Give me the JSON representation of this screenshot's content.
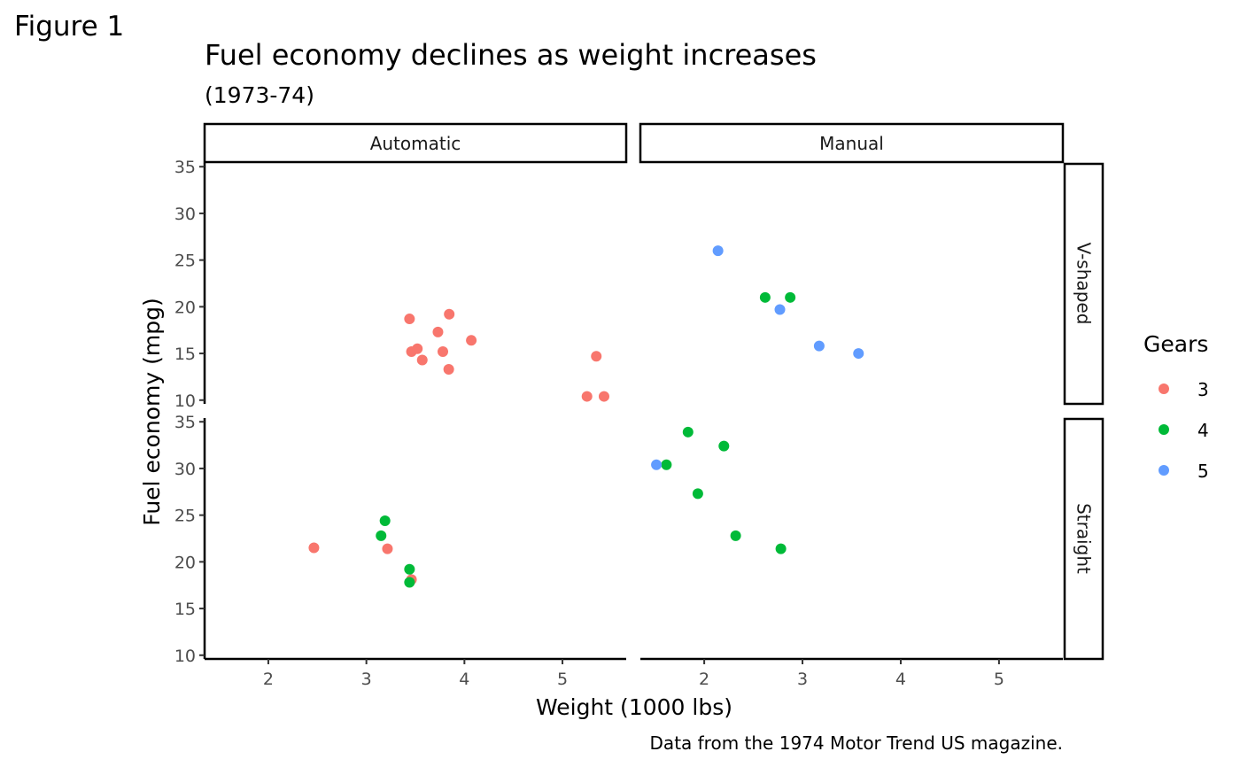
{
  "figure_label": "Figure 1",
  "chart_data": {
    "type": "scatter",
    "title": "Fuel economy declines as weight increases",
    "subtitle": "(1973-74)",
    "caption": "Data from the 1974 Motor Trend US magazine.",
    "xlabel": "Weight (1000 lbs)",
    "ylabel": "Fuel economy (mpg)",
    "xlim": [
      1.35,
      5.65
    ],
    "ylim": [
      9.6,
      35.4
    ],
    "x_ticks": [
      2,
      3,
      4,
      5
    ],
    "y_ticks": [
      10,
      15,
      20,
      25,
      30,
      35
    ],
    "grid": false,
    "facet_cols": [
      "Automatic",
      "Manual"
    ],
    "facet_rows": [
      "V-shaped",
      "Straight"
    ],
    "legend": {
      "title": "Gears",
      "position": "right",
      "entries": [
        {
          "label": "3",
          "color": "#F8766D"
        },
        {
          "label": "4",
          "color": "#00BA38"
        },
        {
          "label": "5",
          "color": "#619CFF"
        }
      ]
    },
    "panels": [
      {
        "col": "Automatic",
        "row": "V-shaped",
        "points": [
          {
            "x": 3.44,
            "y": 18.7,
            "gear": "3"
          },
          {
            "x": 3.46,
            "y": 15.2,
            "gear": "3"
          },
          {
            "x": 3.52,
            "y": 15.5,
            "gear": "3"
          },
          {
            "x": 3.57,
            "y": 14.3,
            "gear": "3"
          },
          {
            "x": 3.73,
            "y": 17.3,
            "gear": "3"
          },
          {
            "x": 3.78,
            "y": 15.2,
            "gear": "3"
          },
          {
            "x": 3.84,
            "y": 13.3,
            "gear": "3"
          },
          {
            "x": 3.845,
            "y": 19.2,
            "gear": "3"
          },
          {
            "x": 4.07,
            "y": 16.4,
            "gear": "3"
          },
          {
            "x": 5.25,
            "y": 10.4,
            "gear": "3"
          },
          {
            "x": 5.345,
            "y": 14.7,
            "gear": "3"
          },
          {
            "x": 5.424,
            "y": 10.4,
            "gear": "3"
          }
        ]
      },
      {
        "col": "Manual",
        "row": "V-shaped",
        "points": [
          {
            "x": 2.14,
            "y": 26.0,
            "gear": "5"
          },
          {
            "x": 2.62,
            "y": 21.0,
            "gear": "4"
          },
          {
            "x": 2.875,
            "y": 21.0,
            "gear": "4"
          },
          {
            "x": 2.77,
            "y": 19.7,
            "gear": "5"
          },
          {
            "x": 3.17,
            "y": 15.8,
            "gear": "5"
          },
          {
            "x": 3.57,
            "y": 15.0,
            "gear": "5"
          }
        ]
      },
      {
        "col": "Automatic",
        "row": "Straight",
        "points": [
          {
            "x": 2.465,
            "y": 21.5,
            "gear": "3"
          },
          {
            "x": 3.215,
            "y": 21.4,
            "gear": "3"
          },
          {
            "x": 3.46,
            "y": 18.1,
            "gear": "3"
          },
          {
            "x": 3.19,
            "y": 24.4,
            "gear": "4"
          },
          {
            "x": 3.15,
            "y": 22.8,
            "gear": "4"
          },
          {
            "x": 3.44,
            "y": 19.2,
            "gear": "4"
          },
          {
            "x": 3.44,
            "y": 17.8,
            "gear": "4"
          }
        ]
      },
      {
        "col": "Manual",
        "row": "Straight",
        "points": [
          {
            "x": 2.32,
            "y": 22.8,
            "gear": "4"
          },
          {
            "x": 2.2,
            "y": 32.4,
            "gear": "4"
          },
          {
            "x": 1.615,
            "y": 30.4,
            "gear": "4"
          },
          {
            "x": 1.835,
            "y": 33.9,
            "gear": "4"
          },
          {
            "x": 1.935,
            "y": 27.3,
            "gear": "4"
          },
          {
            "x": 2.78,
            "y": 21.4,
            "gear": "4"
          },
          {
            "x": 1.513,
            "y": 30.4,
            "gear": "5"
          }
        ]
      }
    ]
  }
}
